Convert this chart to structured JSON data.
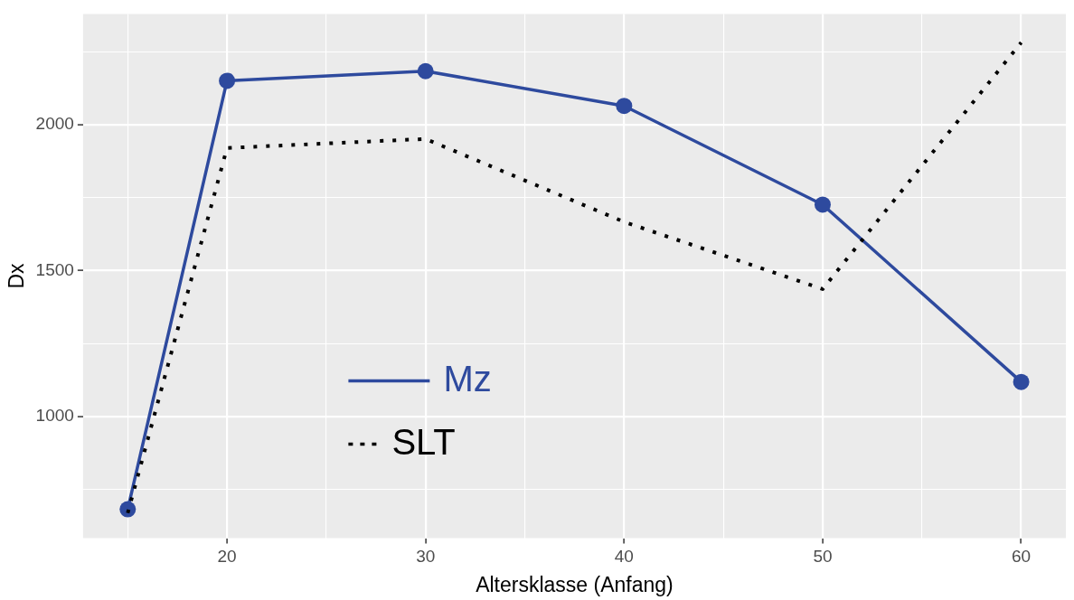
{
  "chart_data": {
    "type": "line",
    "xlabel": "Altersklasse (Anfang)",
    "ylabel": "Dx",
    "x": [
      15,
      20,
      30,
      40,
      50,
      60
    ],
    "series": [
      {
        "name": "Mz",
        "color": "#2e4a9e",
        "values": [
          683,
          2150,
          2183,
          2064,
          1726,
          1119
        ],
        "marker": "circle",
        "line_style": "solid"
      },
      {
        "name": "SLT",
        "color": "#000000",
        "values": [
          670,
          1920,
          1951,
          1667,
          1437,
          2281
        ],
        "marker": "none",
        "line_style": "dotted"
      }
    ],
    "xlim": [
      12.75,
      62.25
    ],
    "xticks": [
      {
        "value": 15,
        "label": null
      },
      20,
      {
        "value": 25,
        "label": null
      },
      30,
      {
        "value": 35,
        "label": null
      },
      40,
      {
        "value": 45,
        "label": null
      },
      50,
      {
        "value": 55,
        "label": null
      },
      60
    ],
    "ylim": [
      584,
      2379
    ],
    "yticks": [
      {
        "value": 750,
        "label": null
      },
      1000,
      {
        "value": 1250,
        "label": null
      },
      1500,
      {
        "value": 1750,
        "label": null
      },
      2000,
      {
        "value": 2250,
        "label": null
      }
    ],
    "grid": true,
    "legend": "bottom left"
  }
}
